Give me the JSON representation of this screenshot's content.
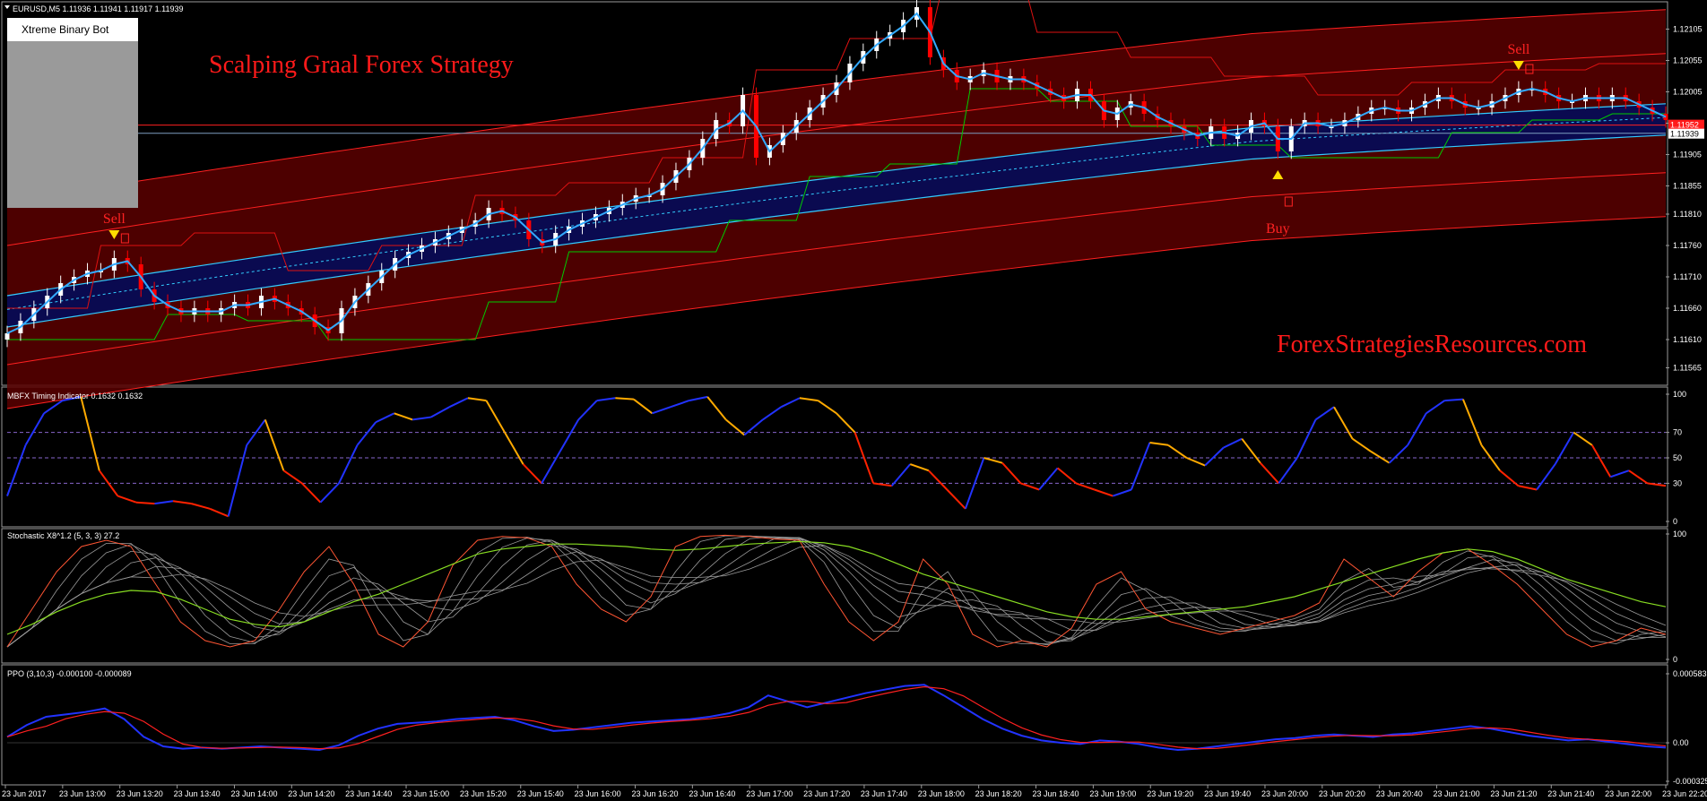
{
  "header": {
    "symbol_info": "EURUSD,M5  1.11936 1.11941 1.11917 1.11939",
    "title": "Scalping Graal Forex Strategy",
    "watermark": "ForexStrategiesResources.com",
    "bot_title": "Xtreme Binary Bot"
  },
  "colors": {
    "background": "#000000",
    "bull_candle": "#ffffff",
    "bear_candle": "#ff0000",
    "channel_fill": "#5a0000",
    "blue_band": "#0a0a50",
    "cyan": "#33ccff",
    "green": "#00cc00",
    "text_red": "#ff2222"
  },
  "chart_data": [
    {
      "type": "line",
      "panel": "price",
      "title": "EURUSD,M5  1.11936 1.11941 1.11917 1.11939",
      "ylim": [
        1.1154,
        1.1214
      ],
      "y_ticks": [
        "1.12105",
        "1.12055",
        "1.12005",
        "1.11955",
        "1.11905",
        "1.11855",
        "1.11810",
        "1.11760",
        "1.11710",
        "1.11660",
        "1.11610",
        "1.11565"
      ],
      "price_labels": {
        "red": "1.11952",
        "current": "1.11939"
      },
      "signals": [
        {
          "label": "Sell",
          "x_index": 8
        },
        {
          "label": "Sell",
          "x_index": 68
        },
        {
          "label": "Sell",
          "x_index": 113
        },
        {
          "label": "Buy",
          "x_index": 95
        }
      ],
      "series": [
        {
          "name": "price",
          "values": [
            1.1162,
            1.1164,
            1.1166,
            1.1168,
            1.117,
            1.1171,
            1.1172,
            1.1172,
            1.1174,
            1.1173,
            1.1169,
            1.1167,
            1.1166,
            1.1165,
            1.1166,
            1.1165,
            1.1166,
            1.1167,
            1.1166,
            1.1168,
            1.1167,
            1.1166,
            1.1165,
            1.1163,
            1.1162,
            1.1166,
            1.1168,
            1.117,
            1.1172,
            1.1174,
            1.1175,
            1.1176,
            1.1177,
            1.1178,
            1.1179,
            1.118,
            1.1182,
            1.1181,
            1.118,
            1.1177,
            1.1176,
            1.1178,
            1.1179,
            1.118,
            1.1181,
            1.1182,
            1.1183,
            1.1184,
            1.1184,
            1.1186,
            1.1188,
            1.119,
            1.1193,
            1.1196,
            1.1195,
            1.12,
            1.119,
            1.1192,
            1.1194,
            1.1196,
            1.1198,
            1.12,
            1.1202,
            1.1205,
            1.1207,
            1.1209,
            1.121,
            1.1212,
            1.1214,
            1.1206,
            1.1204,
            1.1202,
            1.1203,
            1.1204,
            1.1202,
            1.1203,
            1.1202,
            1.1201,
            1.12,
            1.1199,
            1.1201,
            1.1199,
            1.1196,
            1.1198,
            1.1199,
            1.1197,
            1.1196,
            1.1195,
            1.1194,
            1.1193,
            1.1195,
            1.1193,
            1.1194,
            1.1196,
            1.1195,
            1.1191,
            1.1195,
            1.1196,
            1.1195,
            1.1195,
            1.1196,
            1.1197,
            1.1198,
            1.1198,
            1.1197,
            1.1198,
            1.1199,
            1.12,
            1.1199,
            1.1198,
            1.1198,
            1.1199,
            1.12,
            1.1201,
            1.1201,
            1.12,
            1.1199,
            1.1199,
            1.12,
            1.1199,
            1.12,
            1.1199,
            1.1198,
            1.1197,
            1.1196
          ]
        }
      ]
    },
    {
      "type": "line",
      "panel": "timing",
      "title": "MBFX Timing Indicator 0.1632 0.1632",
      "ylim": [
        0,
        100
      ],
      "y_ticks": [
        "100",
        "70",
        "50",
        "30",
        "0"
      ],
      "series": [
        {
          "name": "",
          "values": [
            20,
            60,
            85,
            95,
            98,
            40,
            20,
            15,
            14,
            16,
            14,
            10,
            4,
            60,
            80,
            40,
            30,
            15,
            30,
            60,
            78,
            85,
            80,
            82,
            90,
            97,
            95,
            70,
            45,
            30,
            55,
            80,
            95,
            97,
            96,
            85,
            90,
            95,
            98,
            80,
            68,
            80,
            90,
            97,
            95,
            85,
            70,
            30,
            28,
            45,
            40,
            25,
            10,
            50,
            46,
            30,
            25,
            42,
            30,
            25,
            20,
            25,
            62,
            60,
            50,
            44,
            58,
            65,
            46,
            30,
            50,
            80,
            90,
            65,
            55,
            46,
            60,
            85,
            95,
            96,
            60,
            40,
            28,
            25,
            45,
            70,
            60,
            35,
            40,
            30,
            28
          ]
        }
      ]
    },
    {
      "type": "line",
      "panel": "stochastic",
      "title": "Stochastic X8^1.2 (5, 3, 3) 27.2",
      "ylim": [
        0,
        100
      ],
      "y_ticks": [
        "100",
        "0"
      ],
      "series": [
        {
          "name": "",
          "values": [
            10,
            40,
            70,
            90,
            95,
            90,
            60,
            30,
            15,
            10,
            15,
            40,
            70,
            90,
            60,
            20,
            10,
            30,
            75,
            95,
            98,
            97,
            90,
            60,
            40,
            30,
            50,
            90,
            98,
            99,
            98,
            96,
            95,
            60,
            30,
            15,
            30,
            80,
            60,
            20,
            10,
            15,
            10,
            25,
            60,
            70,
            40,
            30,
            25,
            20,
            25,
            30,
            35,
            45,
            80,
            65,
            50,
            70,
            85,
            88,
            75,
            60,
            40,
            20,
            10,
            15,
            25,
            20
          ]
        },
        {
          "name": "",
          "values": [
            20,
            28,
            38,
            46,
            52,
            55,
            54,
            48,
            40,
            32,
            28,
            26,
            30,
            38,
            46,
            52,
            60,
            68,
            76,
            84,
            88,
            90,
            92,
            92,
            91,
            90,
            88,
            87,
            88,
            90,
            92,
            93,
            94,
            93,
            90,
            84,
            76,
            68,
            62,
            56,
            50,
            44,
            38,
            34,
            32,
            32,
            34,
            36,
            38,
            40,
            42,
            46,
            50,
            56,
            62,
            68,
            74,
            80,
            85,
            88,
            86,
            80,
            72,
            64,
            58,
            52,
            46,
            42
          ]
        }
      ]
    },
    {
      "type": "line",
      "panel": "ppo",
      "title": "PPO (3,10,3) -0.000100 -0.000089",
      "ylim": [
        -0.000325,
        0.000583
      ],
      "y_ticks": [
        "0.000583",
        "0.00",
        "-0.000325"
      ],
      "series": [
        {
          "name": "",
          "values": [
            5e-05,
            0.00015,
            0.00022,
            0.00024,
            0.00026,
            0.00029,
            0.0002,
            5e-05,
            -3e-05,
            -5e-05,
            -4e-05,
            -5e-05,
            -4e-05,
            -3e-05,
            -4e-05,
            -5e-05,
            -6e-05,
            -2e-05,
            6e-05,
            0.00012,
            0.00016,
            0.00017,
            0.00018,
            0.0002,
            0.00021,
            0.00022,
            0.00019,
            0.00014,
            0.0001,
            0.00011,
            0.00013,
            0.00015,
            0.00017,
            0.00018,
            0.00019,
            0.0002,
            0.00022,
            0.00025,
            0.0003,
            0.0004,
            0.00035,
            0.0003,
            0.00034,
            0.00038,
            0.00042,
            0.00045,
            0.00048,
            0.00049,
            0.0004,
            0.0003,
            0.0002,
            0.00012,
            6e-05,
            2e-05,
            0.0,
            -1e-05,
            2e-05,
            1e-05,
            -1e-05,
            -4e-05,
            -6e-05,
            -5e-05,
            -3e-05,
            -1e-05,
            1e-05,
            3e-05,
            4e-05,
            6e-05,
            7e-05,
            6e-05,
            5e-05,
            7e-05,
            8e-05,
            0.0001,
            0.00012,
            0.00014,
            0.00012,
            9e-05,
            6e-05,
            4e-05,
            2e-05,
            3e-05,
            1e-05,
            -1e-05,
            -3e-05,
            -4e-05
          ]
        }
      ]
    }
  ],
  "x_axis": {
    "labels": [
      "23 Jun 2017",
      "23 Jun 13:00",
      "23 Jun 13:20",
      "23 Jun 13:40",
      "23 Jun 14:00",
      "23 Jun 14:20",
      "23 Jun 14:40",
      "23 Jun 15:00",
      "23 Jun 15:20",
      "23 Jun 15:40",
      "23 Jun 16:00",
      "23 Jun 16:20",
      "23 Jun 16:40",
      "23 Jun 17:00",
      "23 Jun 17:20",
      "23 Jun 17:40",
      "23 Jun 18:00",
      "23 Jun 18:20",
      "23 Jun 18:40",
      "23 Jun 19:00",
      "23 Jun 19:20",
      "23 Jun 19:40",
      "23 Jun 20:00",
      "23 Jun 20:20",
      "23 Jun 20:40",
      "23 Jun 21:00",
      "23 Jun 21:20",
      "23 Jun 21:40",
      "23 Jun 22:00",
      "23 Jun 22:20"
    ]
  }
}
